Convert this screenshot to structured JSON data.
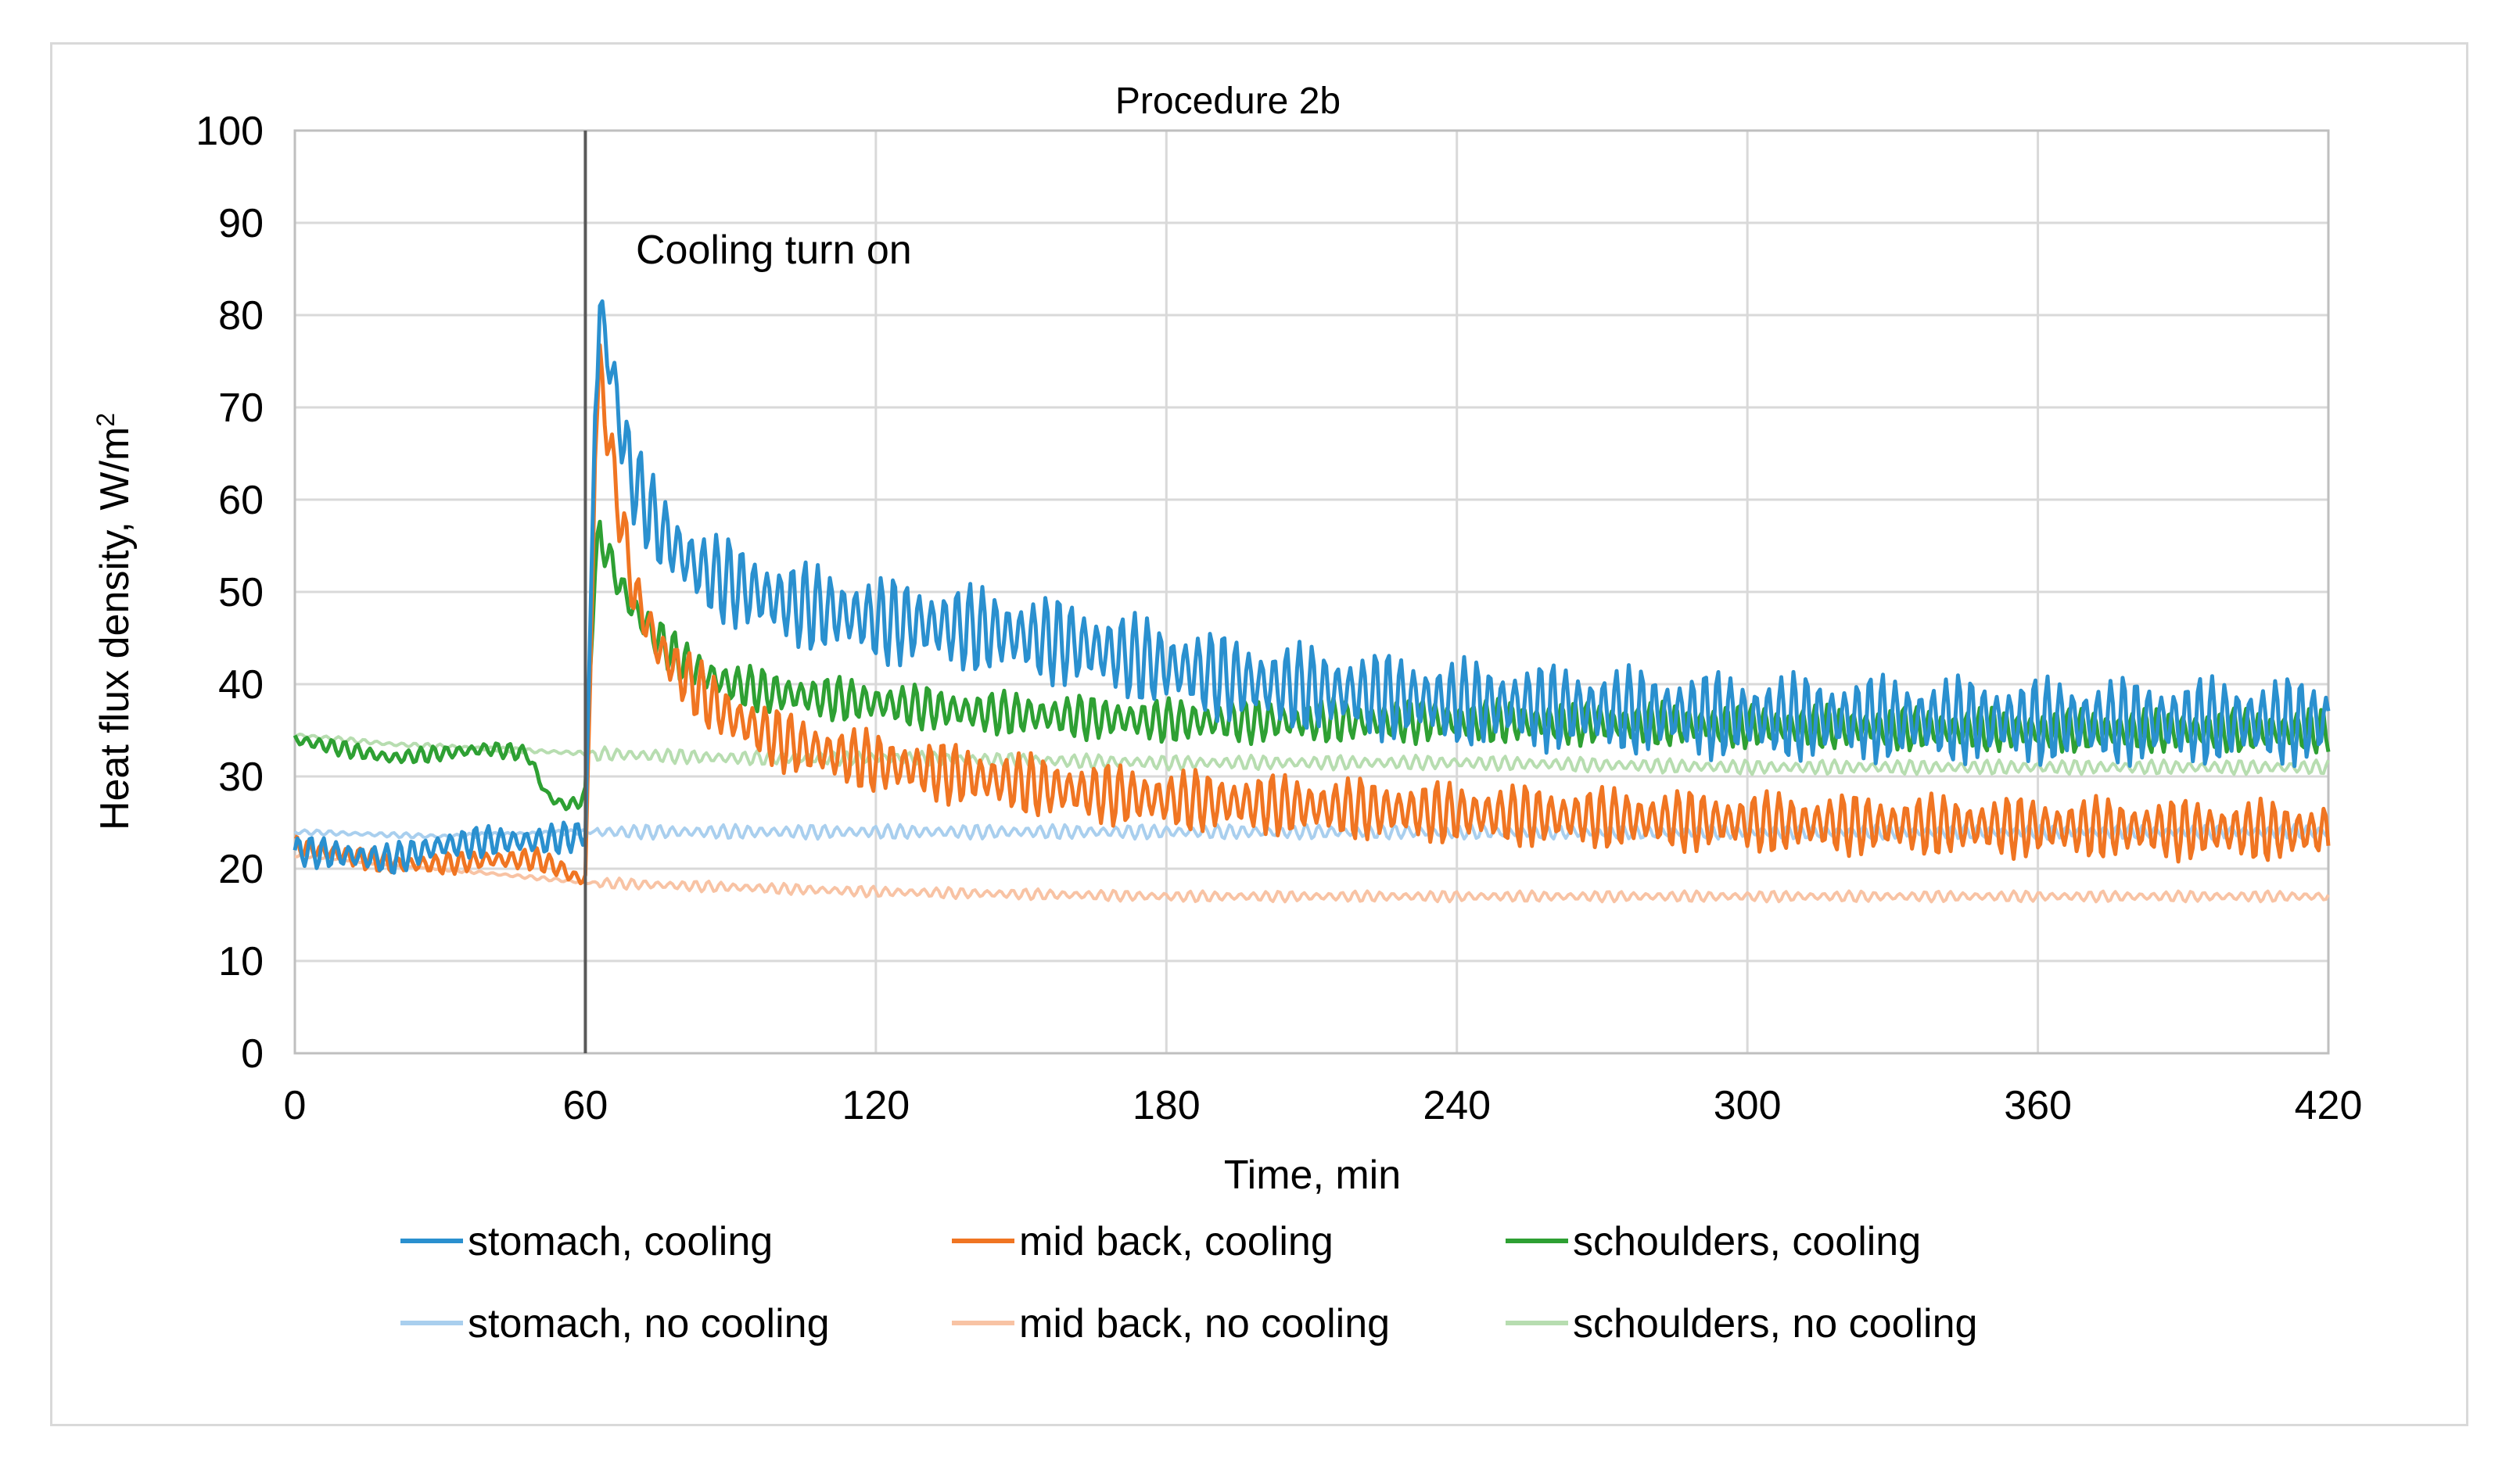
{
  "chart_data": {
    "type": "line",
    "title": "Procedure 2b",
    "xlabel": "Time, min",
    "ylabel": "Heat flux density, W/m",
    "ylabel_superscript": "2",
    "xlim": [
      0,
      420
    ],
    "ylim": [
      0,
      100
    ],
    "x_ticks": [
      0,
      60,
      120,
      180,
      240,
      300,
      360,
      420
    ],
    "y_ticks": [
      0,
      10,
      20,
      30,
      40,
      50,
      60,
      70,
      80,
      90,
      100
    ],
    "grid": true,
    "legend_position": "bottom",
    "annotation": {
      "text": "Cooling turn on",
      "x": 60
    },
    "series": [
      {
        "name": "stomach, cooling",
        "color": "#2a90cf",
        "width": 5,
        "osc": 5,
        "x": [
          0,
          10,
          20,
          30,
          40,
          50,
          58,
          60,
          61,
          62,
          63,
          64,
          66,
          68,
          70,
          75,
          80,
          85,
          90,
          100,
          110,
          120,
          140,
          160,
          180,
          200,
          240,
          300,
          360,
          420
        ],
        "y": [
          22,
          21.5,
          21,
          22.5,
          23,
          23,
          23.5,
          24,
          45,
          70,
          80,
          78,
          72,
          66,
          62,
          57,
          54,
          52,
          51,
          49,
          48,
          47,
          46,
          44.5,
          42,
          40,
          38,
          36.5,
          36,
          36
        ]
      },
      {
        "name": "mid back, cooling",
        "color": "#f07522",
        "width": 5,
        "osc": 3.5,
        "x": [
          0,
          10,
          20,
          30,
          40,
          50,
          55,
          58,
          60,
          61,
          62,
          63,
          64,
          66,
          68,
          70,
          75,
          80,
          85,
          90,
          100,
          110,
          120,
          140,
          160,
          180,
          200,
          240,
          300,
          360,
          420
        ],
        "y": [
          22.5,
          21.5,
          20.5,
          20.5,
          21,
          21,
          20,
          19,
          19,
          40,
          65,
          74,
          70,
          62,
          56,
          50,
          44,
          41,
          38.5,
          36.5,
          34,
          32.5,
          31.5,
          30,
          28.5,
          27.5,
          27,
          26,
          25,
          24.5,
          24
        ]
      },
      {
        "name": "schoulders, cooling",
        "color": "#2ea033",
        "width": 5,
        "osc": 2.5,
        "x": [
          0,
          10,
          20,
          30,
          40,
          48,
          52,
          55,
          58,
          60,
          61,
          62,
          63,
          64,
          66,
          68,
          70,
          75,
          80,
          85,
          90,
          100,
          120,
          140,
          160,
          180,
          200,
          240,
          300,
          360,
          420
        ],
        "y": [
          34,
          33,
          32,
          32.5,
          33,
          32.5,
          28,
          27,
          27,
          28,
          42,
          52,
          56,
          55,
          52,
          50,
          48,
          45,
          42.5,
          41,
          40,
          39,
          38,
          37,
          36.5,
          36,
          36,
          36,
          35.5,
          35,
          35
        ]
      },
      {
        "name": "stomach, no cooling",
        "color": "#a9cfee",
        "width": 4,
        "osc": 0.8,
        "x": [
          0,
          30,
          60,
          120,
          180,
          240,
          300,
          360,
          420
        ],
        "y": [
          24,
          23.5,
          24,
          24,
          24,
          24,
          24,
          24,
          24
        ]
      },
      {
        "name": "mid back, no cooling",
        "color": "#f8c3a4",
        "width": 4,
        "osc": 0.6,
        "x": [
          0,
          20,
          40,
          60,
          90,
          120,
          180,
          240,
          300,
          360,
          420
        ],
        "y": [
          21.5,
          20.5,
          19.5,
          18.5,
          18,
          17.5,
          17,
          17,
          17,
          17,
          17
        ]
      },
      {
        "name": "schoulders, no cooling",
        "color": "#b7ddb0",
        "width": 4,
        "osc": 0.8,
        "x": [
          0,
          20,
          40,
          60,
          90,
          120,
          180,
          240,
          300,
          360,
          420
        ],
        "y": [
          34.5,
          33.5,
          33,
          32.5,
          32,
          32,
          31.5,
          31.5,
          31,
          31,
          31
        ]
      }
    ]
  }
}
